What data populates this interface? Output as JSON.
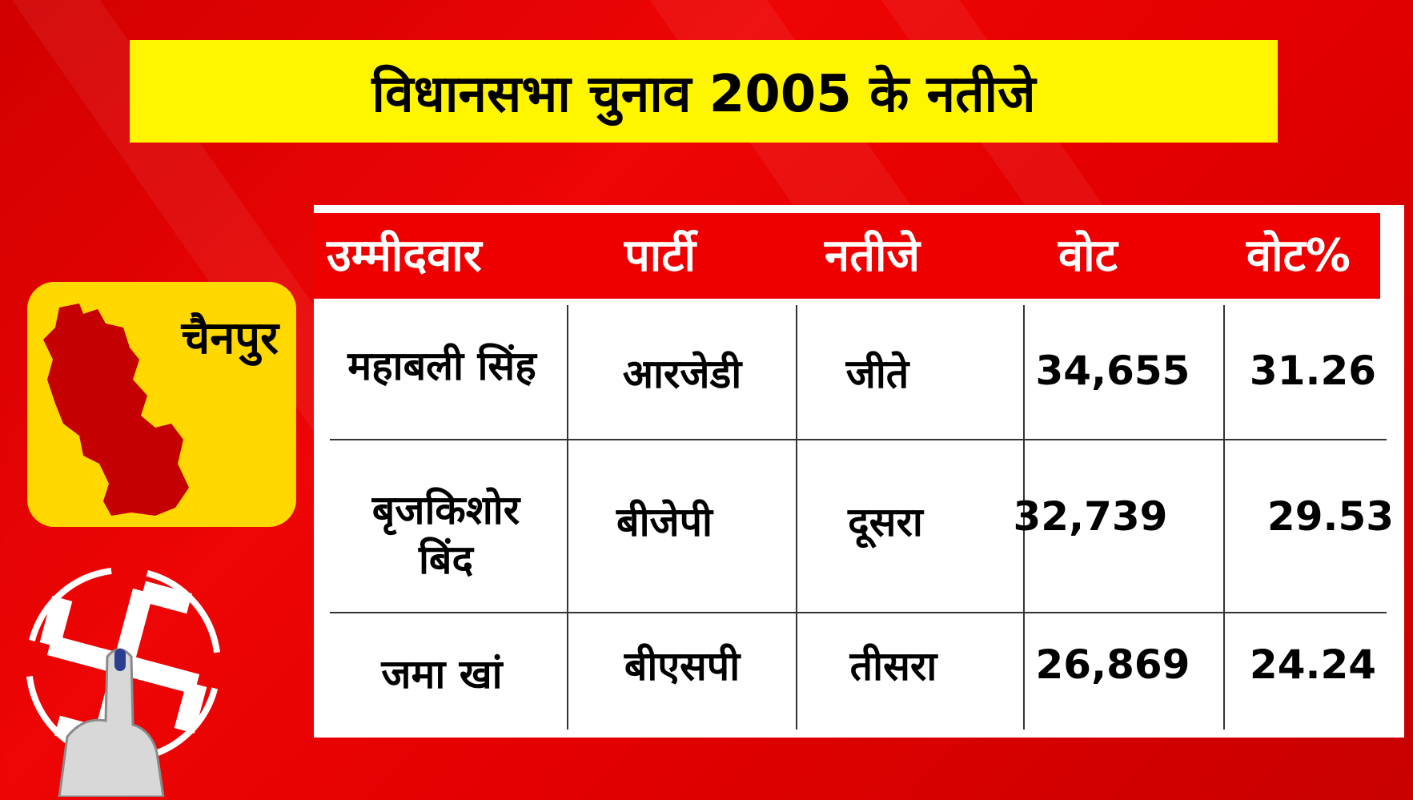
{
  "title": "विधानसभा चुनाव 2005 के नतीजे",
  "district": "चैनपुर",
  "table": {
    "headers": [
      "उम्मीदवार",
      "पार्टी",
      "नतीजे",
      "वोट",
      "वोट%"
    ],
    "rows": [
      {
        "candidate": "महाबली सिंह",
        "party": "आरजेडी",
        "result": "जीते",
        "votes": "34,655",
        "percent": "31.26"
      },
      {
        "candidate": "बृजकिशोर बिंद",
        "party": "बीजेपी",
        "result": "दूसरा",
        "votes": "32,739",
        "percent": "29.53"
      },
      {
        "candidate": "जमा खां",
        "party": "बीएसपी",
        "result": "तीसरा",
        "votes": "26,869",
        "percent": "24.24"
      }
    ]
  },
  "colors": {
    "background": "#e30000",
    "title_bar": "#fff500",
    "card": "#ffd800",
    "header": "#ee0000"
  },
  "icons": [
    "district-map-icon",
    "swastik-voting-symbol-icon",
    "inked-finger-icon"
  ]
}
